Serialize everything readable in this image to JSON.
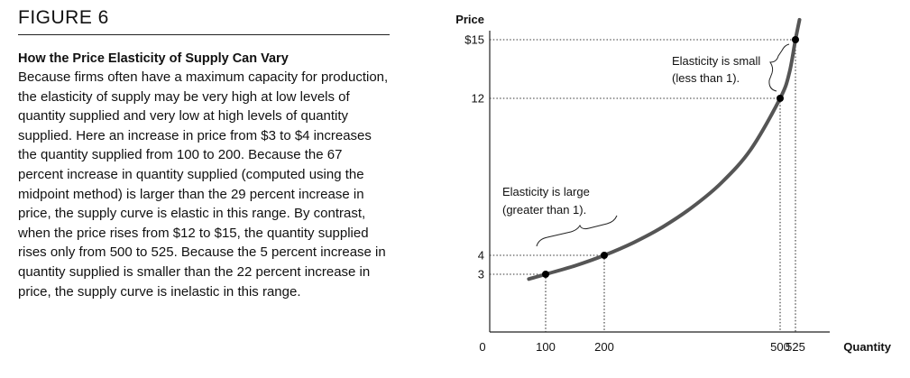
{
  "figure": {
    "label": "FIGURE 6",
    "subtitle": "How the Price Elasticity of Supply Can Vary",
    "body": "Because firms often have a maximum capacity for production, the elasticity of supply may be very high at low levels of quantity supplied and very low at high levels of quantity supplied. Here an increase in price from $3 to $4 increases the quantity supplied from 100 to 200. Because the 67 percent increase in quantity supplied (computed using the midpoint method) is larger than the 29 percent increase in price, the supply curve is elastic in this range. By contrast, when the price rises from $12 to $15, the quantity supplied rises only from 500 to 525. Because the 5 percent increase in quantity supplied is smaller than the 22 percent increase in price, the supply curve is inelastic in this range."
  },
  "chart_data": {
    "type": "line",
    "title": "",
    "xlabel": "Quantity",
    "ylabel": "Price",
    "origin_label": "0",
    "x_ticks": [
      {
        "value": 100,
        "label": "100"
      },
      {
        "value": 200,
        "label": "200"
      },
      {
        "value": 500,
        "label": "500"
      },
      {
        "value": 525,
        "label": "525"
      }
    ],
    "y_ticks": [
      {
        "value": 3,
        "label": "3"
      },
      {
        "value": 4,
        "label": "4"
      },
      {
        "value": 12,
        "label": "12"
      },
      {
        "value": 15,
        "label": "$15"
      }
    ],
    "xlim": [
      0,
      600
    ],
    "ylim": [
      0,
      16
    ],
    "series": [
      {
        "name": "Supply",
        "x": [
          70,
          100,
          150,
          200,
          250,
          300,
          350,
          400,
          450,
          500,
          515,
          525,
          532
        ],
        "y": [
          2.75,
          3,
          3.45,
          4,
          4.65,
          5.45,
          6.45,
          7.7,
          9.4,
          12,
          13.3,
          15,
          16.3
        ]
      }
    ],
    "points": [
      {
        "x": 100,
        "y": 3
      },
      {
        "x": 200,
        "y": 4
      },
      {
        "x": 500,
        "y": 12
      },
      {
        "x": 525,
        "y": 15
      }
    ],
    "annotations": [
      {
        "lines": [
          "Elasticity is large",
          "(greater than 1)."
        ],
        "x_range": [
          100,
          200
        ],
        "y_range": [
          3,
          4
        ]
      },
      {
        "lines": [
          "Elasticity is small",
          "(less than 1)."
        ],
        "x_range": [
          500,
          525
        ],
        "y_range": [
          12,
          15
        ]
      }
    ]
  }
}
